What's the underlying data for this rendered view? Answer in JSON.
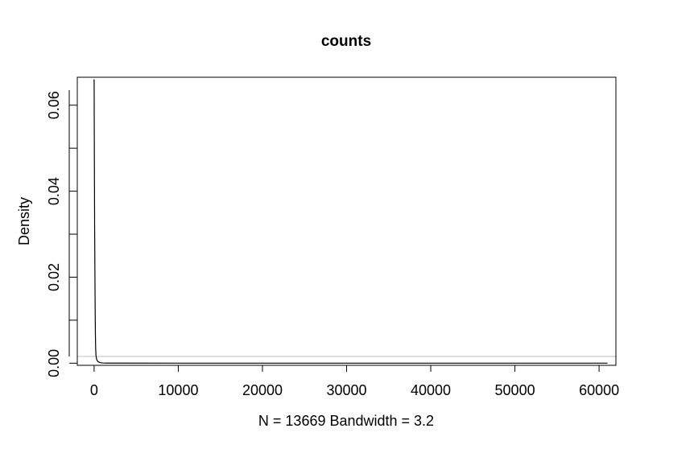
{
  "chart_data": {
    "type": "line",
    "title": "counts",
    "xlabel": "N = 13669   Bandwidth = 3.2",
    "ylabel": "Density",
    "xlim": [
      -2000,
      62000
    ],
    "ylim": [
      -0.0005,
      0.0665
    ],
    "x_ticks": [
      0,
      10000,
      20000,
      30000,
      40000,
      50000,
      60000
    ],
    "x_tick_labels": [
      "0",
      "10000",
      "20000",
      "30000",
      "40000",
      "50000",
      "60000"
    ],
    "y_ticks": [
      0.0,
      0.01,
      0.02,
      0.03,
      0.04,
      0.05,
      0.06
    ],
    "y_tick_labels": [
      "0.00",
      "",
      "0.02",
      "",
      "0.04",
      "",
      "0.06"
    ],
    "grid": false,
    "baseline": {
      "y": 0,
      "color": "#bebebe"
    },
    "series": [
      {
        "color": "#000000",
        "x": [
          -5,
          0,
          3,
          8,
          12,
          20,
          30,
          45,
          60,
          90,
          120,
          150,
          180,
          230,
          300,
          400,
          500,
          650,
          800,
          1000,
          1500,
          3000,
          10000,
          30000,
          61000
        ],
        "y": [
          0.0655,
          0.066,
          0.065,
          0.062,
          0.058,
          0.053,
          0.047,
          0.04,
          0.032,
          0.022,
          0.013,
          0.007,
          0.0035,
          0.0016,
          0.0009,
          0.0005,
          0.0003,
          0.00018,
          0.0001,
          5e-05,
          2e-05,
          1e-05,
          3e-06,
          1e-06,
          0.0
        ]
      }
    ]
  }
}
